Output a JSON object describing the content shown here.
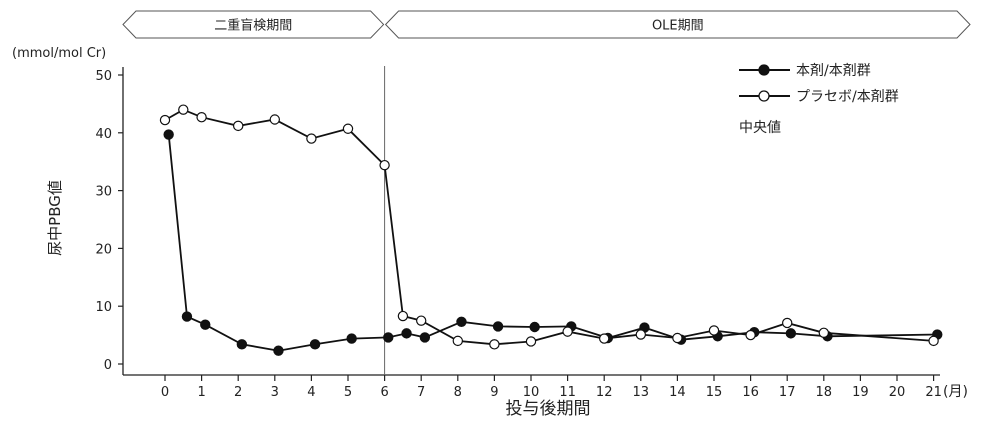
{
  "chart_data": {
    "type": "line",
    "phases": [
      {
        "label": "二重盲検期間",
        "x_start": -1,
        "x_end": 6
      },
      {
        "label": "OLE期間",
        "x_start": 6,
        "x_end": 22
      }
    ],
    "y_unit": "(mmol/mol Cr)",
    "ylabel": "尿中PBG値",
    "xlabel": "投与後期間",
    "x_unit": "(月)",
    "ylim": [
      0,
      50
    ],
    "y_ticks": [
      0,
      10,
      20,
      30,
      40,
      50
    ],
    "xlim": [
      -1,
      22
    ],
    "x_ticks": [
      0,
      1,
      2,
      3,
      4,
      5,
      6,
      7,
      8,
      9,
      10,
      11,
      12,
      13,
      14,
      15,
      16,
      17,
      18,
      19,
      20,
      21
    ],
    "divider_x": 6,
    "legend_position": "top-right",
    "legend_note": "中央値",
    "series": [
      {
        "name": "本剤/本剤群",
        "marker": "filled-circle",
        "color": "#111111",
        "points": [
          [
            0.1,
            39.7
          ],
          [
            0.6,
            8.2
          ],
          [
            1.1,
            6.8
          ],
          [
            2.1,
            3.4
          ],
          [
            3.1,
            2.3
          ],
          [
            4.1,
            3.4
          ],
          [
            5.1,
            4.4
          ],
          [
            6.1,
            4.6
          ],
          [
            6.6,
            5.3
          ],
          [
            7.1,
            4.6
          ],
          [
            8.1,
            7.3
          ],
          [
            9.1,
            6.5
          ],
          [
            10.1,
            6.4
          ],
          [
            11.1,
            6.5
          ],
          [
            12.1,
            4.5
          ],
          [
            13.1,
            6.3
          ],
          [
            14.1,
            4.2
          ],
          [
            15.1,
            4.8
          ],
          [
            16.1,
            5.5
          ],
          [
            17.1,
            5.3
          ],
          [
            18.1,
            4.8
          ],
          [
            21.1,
            5.1
          ]
        ]
      },
      {
        "name": "プラセボ/本剤群",
        "marker": "open-circle",
        "color": "#111111",
        "points": [
          [
            0.0,
            42.2
          ],
          [
            0.5,
            44.0
          ],
          [
            1.0,
            42.7
          ],
          [
            2.0,
            41.2
          ],
          [
            3.0,
            42.3
          ],
          [
            4.0,
            39.0
          ],
          [
            5.0,
            40.7
          ],
          [
            6.0,
            34.4
          ],
          [
            6.5,
            8.3
          ],
          [
            7.0,
            7.5
          ],
          [
            8.0,
            4.0
          ],
          [
            9.0,
            3.4
          ],
          [
            10.0,
            3.9
          ],
          [
            11.0,
            5.6
          ],
          [
            12.0,
            4.4
          ],
          [
            13.0,
            5.1
          ],
          [
            14.0,
            4.5
          ],
          [
            15.0,
            5.8
          ],
          [
            16.0,
            5.0
          ],
          [
            17.0,
            7.1
          ],
          [
            18.0,
            5.4
          ],
          [
            21.0,
            4.0
          ]
        ]
      }
    ]
  }
}
